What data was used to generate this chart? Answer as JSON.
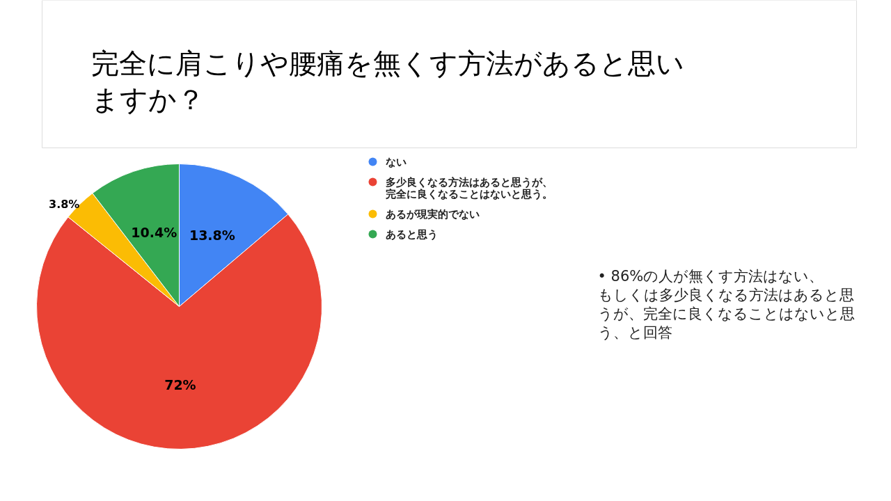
{
  "chart_data": {
    "type": "pie",
    "title": "完全に肩こりや腰痛を無くす方法があると思いますか？",
    "categories": [
      "ない",
      "多少良くなる方法はあると思うが、完全に良くなることはないと思う。",
      "あるが現実的でない",
      "あると思う"
    ],
    "values": [
      13.8,
      72,
      3.8,
      10.4
    ],
    "colors": [
      "#4285f4",
      "#ea4335",
      "#fbbc04",
      "#34a853"
    ],
    "value_labels": [
      "13.8%",
      "72%",
      "3.8%",
      "10.4%"
    ],
    "legend": "top right",
    "annotations": [
      "• 86%の人が無くす方法はない、もしくは多少良くなる方法はあると思うが、完全に良くなることはないと思う、と回答"
    ]
  }
}
